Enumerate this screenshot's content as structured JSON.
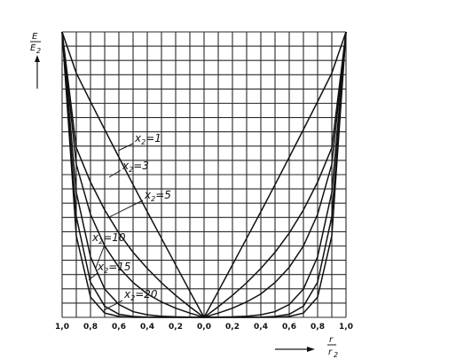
{
  "chart_data": {
    "type": "line",
    "title": "",
    "xlabel": "r/r2",
    "ylabel": "E/E2",
    "xlim": [
      -1.0,
      1.0
    ],
    "ylim": [
      0,
      1
    ],
    "grid": true,
    "x_tick_labels": [
      "1,0",
      "0,8",
      "0,6",
      "0,4",
      "0,2",
      "0,0",
      "0,2",
      "0,4",
      "0,6",
      "0,8",
      "1,0"
    ],
    "series": [
      {
        "name": "x2=1",
        "x": [
          0,
          0.1,
          0.2,
          0.3,
          0.4,
          0.5,
          0.6,
          0.7,
          0.8,
          0.9,
          1.0
        ],
        "y": [
          0,
          0.091,
          0.184,
          0.277,
          0.37,
          0.465,
          0.561,
          0.658,
          0.756,
          0.856,
          1.0
        ]
      },
      {
        "name": "x2=3",
        "x": [
          0,
          0.1,
          0.2,
          0.3,
          0.4,
          0.5,
          0.6,
          0.7,
          0.8,
          0.9,
          1.0
        ],
        "y": [
          0,
          0.037,
          0.077,
          0.121,
          0.171,
          0.228,
          0.295,
          0.376,
          0.474,
          0.594,
          1.0
        ]
      },
      {
        "name": "x2=5",
        "x": [
          0,
          0.1,
          0.2,
          0.3,
          0.4,
          0.5,
          0.6,
          0.7,
          0.8,
          0.9,
          1.0
        ],
        "y": [
          0,
          0.015,
          0.032,
          0.054,
          0.082,
          0.122,
          0.175,
          0.25,
          0.361,
          0.536,
          1.0
        ]
      },
      {
        "name": "x2=10",
        "x": [
          0,
          0.1,
          0.2,
          0.3,
          0.4,
          0.5,
          0.6,
          0.7,
          0.8,
          0.9,
          1.0
        ],
        "y": [
          0,
          0.001,
          0.002,
          0.004,
          0.009,
          0.02,
          0.045,
          0.099,
          0.212,
          0.438,
          1.0
        ]
      },
      {
        "name": "x2=15",
        "x": [
          0,
          0.1,
          0.2,
          0.3,
          0.4,
          0.5,
          0.6,
          0.7,
          0.8,
          0.9,
          1.0
        ],
        "y": [
          0,
          0.0,
          0.0,
          0.0,
          0.001,
          0.003,
          0.011,
          0.039,
          0.123,
          0.353,
          1.0
        ]
      },
      {
        "name": "x2=20",
        "x": [
          0,
          0.1,
          0.2,
          0.3,
          0.4,
          0.5,
          0.6,
          0.7,
          0.8,
          0.9,
          1.0
        ],
        "y": [
          0,
          0.0,
          0.0,
          0.0,
          0.0,
          0.0,
          0.003,
          0.015,
          0.071,
          0.285,
          1.0
        ]
      }
    ],
    "series_labels": [
      {
        "prefix": "x",
        "sub": "2",
        "suffix": "=1"
      },
      {
        "prefix": "x",
        "sub": "2",
        "suffix": "=3"
      },
      {
        "prefix": "x",
        "sub": "2",
        "suffix": "=5"
      },
      {
        "prefix": "x",
        "sub": "2",
        "suffix": "=10"
      },
      {
        "prefix": "x",
        "sub": "2",
        "suffix": "=15"
      },
      {
        "prefix": "x",
        "sub": "2",
        "suffix": "=20"
      }
    ],
    "y_axis_label": {
      "num": "E",
      "den": "E",
      "sub": "2"
    },
    "x_axis_label": {
      "num": "r",
      "den": "r",
      "sub": "2"
    }
  }
}
